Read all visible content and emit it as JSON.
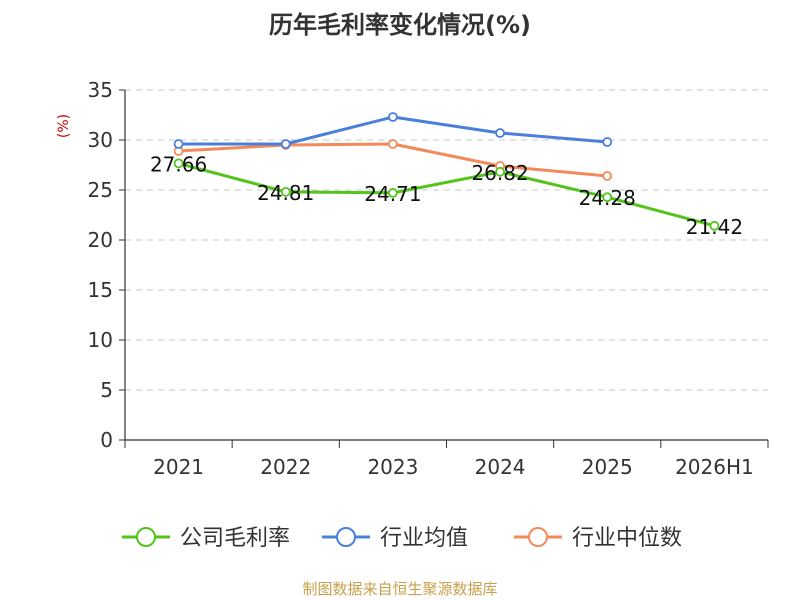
{
  "chart_data": {
    "type": "line",
    "title": "历年毛利率变化情况(%)",
    "ylabel": "(%)",
    "xlabel": "",
    "categories": [
      "2021",
      "2022",
      "2023",
      "2024",
      "2025",
      "2026H1"
    ],
    "ylim": [
      0,
      35
    ],
    "yticks": [
      0,
      5,
      10,
      15,
      20,
      25,
      30,
      35
    ],
    "grid": true,
    "legend_position": "bottom",
    "series": [
      {
        "name": "公司毛利率",
        "color": "#52c41a",
        "values": [
          27.66,
          24.81,
          24.71,
          26.82,
          24.28,
          21.42
        ],
        "labels": [
          "27.66",
          "24.81",
          "24.71",
          "26.82",
          "24.28",
          "21.42"
        ]
      },
      {
        "name": "行业均值",
        "color": "#4a7fdc",
        "values": [
          29.6,
          29.6,
          32.3,
          30.7,
          29.8,
          null
        ]
      },
      {
        "name": "行业中位数",
        "color": "#f4895a",
        "values": [
          28.9,
          29.5,
          29.6,
          27.4,
          26.4,
          null
        ]
      }
    ]
  },
  "source": "制图数据来自恒生聚源数据库"
}
